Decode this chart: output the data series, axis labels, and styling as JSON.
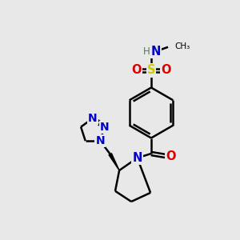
{
  "background_color": "#e8e8e8",
  "atom_colors": {
    "C": "#000000",
    "N": "#0000cc",
    "O": "#dd0000",
    "S": "#cccc00",
    "H": "#607060"
  },
  "bond_color": "#000000",
  "bond_width": 1.8,
  "figsize": [
    3.0,
    3.0
  ],
  "dpi": 100
}
